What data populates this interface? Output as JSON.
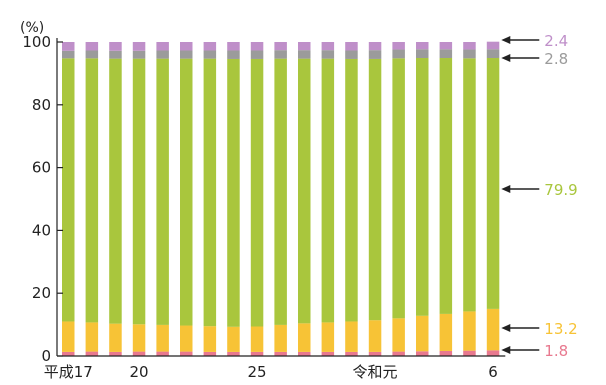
{
  "chart_data": {
    "type": "bar",
    "stacked": true,
    "ylabel": "(%)",
    "ylim": [
      0,
      100
    ],
    "yticks": [
      0,
      20,
      40,
      60,
      80,
      100
    ],
    "grid": false,
    "categories": [
      "平成17",
      "",
      "",
      "20",
      "",
      "",
      "",
      "",
      "25",
      "",
      "",
      "",
      "",
      "令和元",
      "",
      "",
      "",
      "",
      "6"
    ],
    "series": [
      {
        "key": "s1",
        "color": "#e8798f",
        "values": [
          1.3,
          1.4,
          1.3,
          1.4,
          1.4,
          1.4,
          1.3,
          1.3,
          1.3,
          1.3,
          1.3,
          1.3,
          1.3,
          1.3,
          1.4,
          1.5,
          1.6,
          1.7,
          1.8
        ]
      },
      {
        "key": "s2",
        "color": "#f7c336",
        "values": [
          9.7,
          9.3,
          9.0,
          8.7,
          8.5,
          8.3,
          8.2,
          8.0,
          8.1,
          8.6,
          9.1,
          9.4,
          9.7,
          10.1,
          10.6,
          11.3,
          11.8,
          12.5,
          13.2
        ]
      },
      {
        "key": "s3",
        "color": "#a9c63d",
        "values": [
          83.8,
          84.1,
          84.4,
          84.6,
          84.8,
          85.0,
          85.2,
          85.3,
          85.2,
          84.8,
          84.3,
          84.0,
          83.6,
          83.2,
          82.8,
          82.1,
          81.5,
          80.6,
          79.9
        ]
      },
      {
        "key": "s4",
        "color": "#9b9b9b",
        "values": [
          2.4,
          2.5,
          2.5,
          2.5,
          2.6,
          2.6,
          2.6,
          2.7,
          2.7,
          2.7,
          2.7,
          2.7,
          2.7,
          2.8,
          2.8,
          2.8,
          2.8,
          2.8,
          2.8
        ]
      },
      {
        "key": "s5",
        "color": "#bf8fc9",
        "values": [
          2.8,
          2.7,
          2.8,
          2.8,
          2.7,
          2.7,
          2.7,
          2.7,
          2.7,
          2.6,
          2.6,
          2.6,
          2.7,
          2.6,
          2.4,
          2.3,
          2.3,
          2.4,
          2.4
        ]
      }
    ],
    "annotations": [
      {
        "series": "s5",
        "label": "2.4",
        "color": "#bf8fc9"
      },
      {
        "series": "s4",
        "label": "2.8",
        "color": "#9b9b9b"
      },
      {
        "series": "s3",
        "label": "79.9",
        "color": "#a9c63d"
      },
      {
        "series": "s2",
        "label": "13.2",
        "color": "#f7c336"
      },
      {
        "series": "s1",
        "label": "1.8",
        "color": "#e8798f"
      }
    ]
  }
}
